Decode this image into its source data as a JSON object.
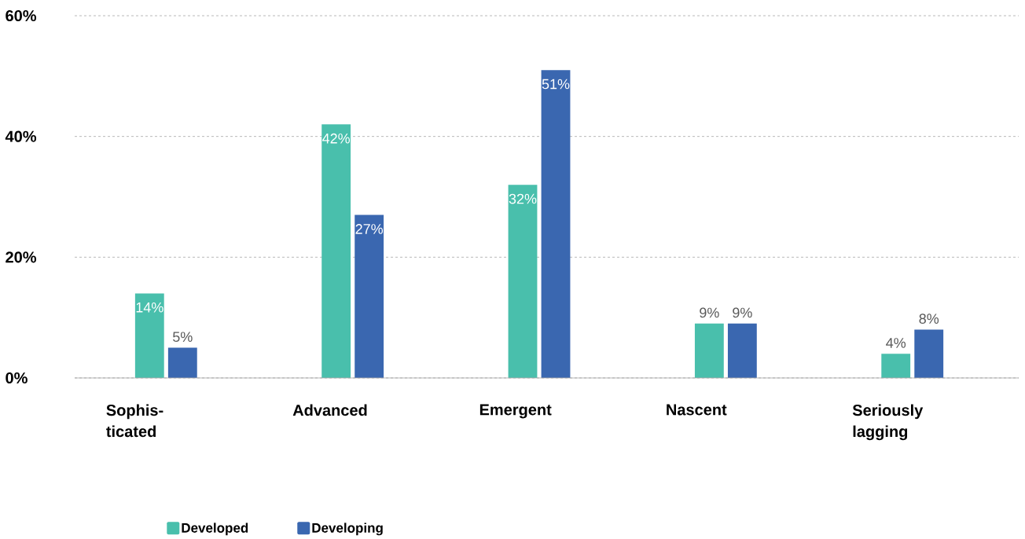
{
  "chart_data": {
    "type": "bar",
    "categories": [
      "Sophis-ticated",
      "Advanced",
      "Emergent",
      "Nascent",
      "Seriously lagging"
    ],
    "series": [
      {
        "name": "Developed",
        "color": "#49bfac",
        "values": [
          14,
          42,
          32,
          9,
          4
        ],
        "value_labels": [
          "14%",
          "42%",
          "32%",
          "9%",
          "4%"
        ]
      },
      {
        "name": "Developing",
        "color": "#3a67b0",
        "values": [
          5,
          27,
          51,
          9,
          8
        ],
        "value_labels": [
          "5%",
          "27%",
          "51%",
          "9%",
          "8%"
        ]
      }
    ],
    "ylim": [
      0,
      60
    ],
    "yticks": [
      {
        "value": 0,
        "label": "0%"
      },
      {
        "value": 20,
        "label": "20%"
      },
      {
        "value": 40,
        "label": "40%"
      },
      {
        "value": 60,
        "label": "60%"
      }
    ],
    "grid": "y",
    "legend": "bottom"
  }
}
